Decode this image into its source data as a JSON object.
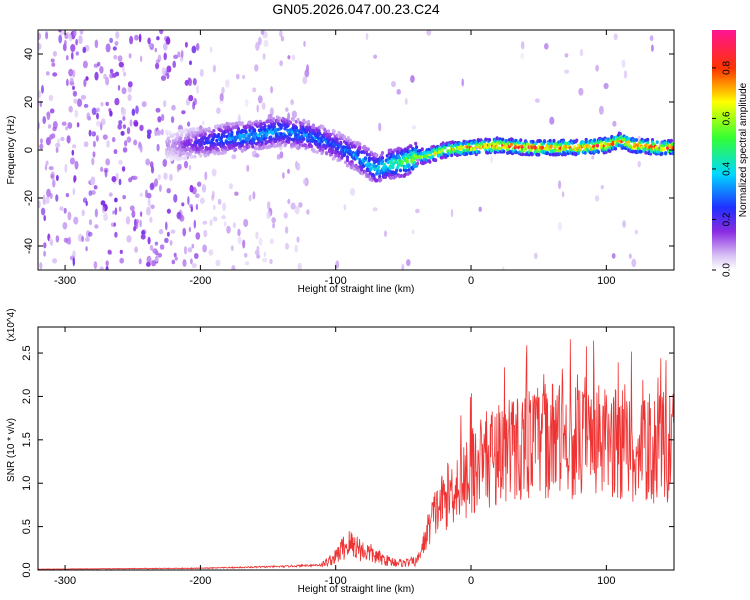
{
  "title": "GN05.2026.047.00.23.C24",
  "chart_data": [
    {
      "type": "heatmap",
      "xlabel": "Height of straight line (km)",
      "ylabel": "Frequency (Hz)",
      "xlim": [
        -320,
        150
      ],
      "ylim": [
        -50,
        50
      ],
      "x_ticks": [
        -300,
        -200,
        -100,
        0,
        100
      ],
      "y_ticks": [
        -40,
        -20,
        0,
        20,
        40
      ],
      "colorbar": {
        "label": "Normalized spectral amplitude",
        "range": [
          0.0,
          0.95
        ],
        "ticks": [
          0.0,
          0.2,
          0.4,
          0.6,
          0.8
        ]
      },
      "ridge": {
        "x": [
          -220,
          -200,
          -180,
          -160,
          -140,
          -120,
          -100,
          -90,
          -80,
          -70,
          -60,
          -50,
          -40,
          -30,
          -20,
          0,
          20,
          40,
          60,
          80,
          100,
          110,
          120,
          140,
          150
        ],
        "frequency": [
          2,
          3,
          5,
          6,
          8,
          6,
          2,
          -1,
          -4,
          -8,
          -6,
          -5,
          -3,
          -2,
          0,
          1,
          2,
          1,
          1,
          1,
          2,
          4,
          2,
          1,
          1
        ],
        "amplitude": [
          0.1,
          0.25,
          0.35,
          0.4,
          0.38,
          0.35,
          0.3,
          0.35,
          0.4,
          0.45,
          0.5,
          0.6,
          0.65,
          0.7,
          0.75,
          0.85,
          0.9,
          0.9,
          0.9,
          0.9,
          0.9,
          0.85,
          0.9,
          0.9,
          0.85
        ]
      },
      "noise_region_x": [
        -320,
        -120
      ]
    },
    {
      "type": "line",
      "xlabel": "Height of straight line (km)",
      "ylabel": "SNR (10 * v/v)",
      "y_multiplier": "(x10^4)",
      "xlim": [
        -320,
        150
      ],
      "ylim": [
        0,
        2.8
      ],
      "x_ticks": [
        -300,
        -200,
        -100,
        0,
        100
      ],
      "y_ticks": [
        0.0,
        0.5,
        1.0,
        1.5,
        2.0,
        2.5
      ],
      "color": "#ee3333",
      "envelope": {
        "x": [
          -320,
          -200,
          -140,
          -110,
          -100,
          -95,
          -90,
          -85,
          -80,
          -75,
          -70,
          -60,
          -50,
          -40,
          -35,
          -30,
          -25,
          -20,
          -15,
          -10,
          -5,
          0,
          10,
          20,
          30,
          40,
          50,
          60,
          70,
          80,
          90,
          100,
          110,
          120,
          130,
          140,
          150
        ],
        "values": [
          0.01,
          0.02,
          0.04,
          0.06,
          0.15,
          0.25,
          0.3,
          0.28,
          0.22,
          0.2,
          0.15,
          0.1,
          0.08,
          0.1,
          0.3,
          0.55,
          0.7,
          0.8,
          0.9,
          1.0,
          1.05,
          1.15,
          1.25,
          1.35,
          1.4,
          1.45,
          1.48,
          1.5,
          1.5,
          1.45,
          1.5,
          1.45,
          1.45,
          1.4,
          1.35,
          1.4,
          1.3
        ]
      }
    }
  ]
}
